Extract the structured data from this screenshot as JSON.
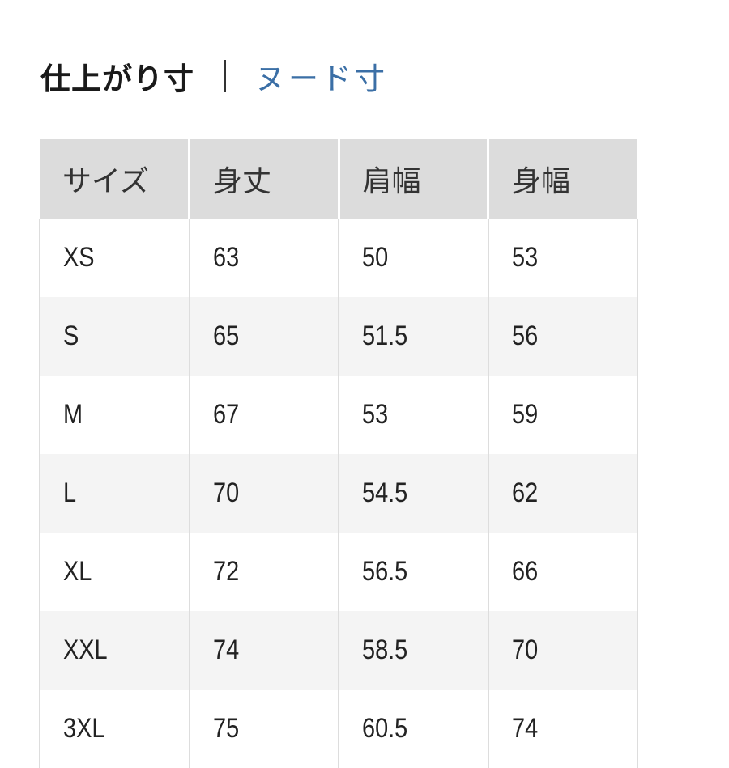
{
  "tabs": {
    "active": "仕上がり寸",
    "separator": "|",
    "other": "ヌード寸"
  },
  "table": {
    "headers": [
      "サイズ",
      "身丈",
      "肩幅",
      "身幅"
    ],
    "rows": [
      [
        "XS",
        "63",
        "50",
        "53"
      ],
      [
        "S",
        "65",
        "51.5",
        "56"
      ],
      [
        "M",
        "67",
        "53",
        "59"
      ],
      [
        "L",
        "70",
        "54.5",
        "62"
      ],
      [
        "XL",
        "72",
        "56.5",
        "66"
      ],
      [
        "XXL",
        "74",
        "58.5",
        "70"
      ],
      [
        "3XL",
        "75",
        "60.5",
        "74"
      ]
    ]
  },
  "colors": {
    "link": "#3b6fa6",
    "header_bg": "#dcdcdc",
    "stripe_bg": "#f4f4f4"
  }
}
